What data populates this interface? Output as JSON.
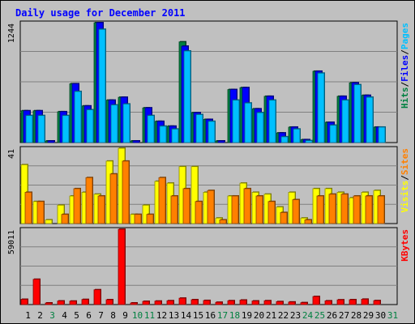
{
  "chart_data": {
    "type": "bar",
    "title": "Daily usage for December 2011",
    "categories": [
      "1",
      "2",
      "3",
      "4",
      "5",
      "6",
      "7",
      "8",
      "9",
      "10",
      "11",
      "12",
      "13",
      "14",
      "15",
      "16",
      "17",
      "18",
      "19",
      "20",
      "21",
      "22",
      "23",
      "24",
      "25",
      "26",
      "27",
      "28",
      "29",
      "30",
      "31"
    ],
    "weekend_days": [
      "3",
      "10",
      "11",
      "17",
      "18",
      "24",
      "25",
      "31"
    ],
    "panels": [
      {
        "id": "hits",
        "ymax_label": "1244",
        "ymax": 1244,
        "legend": [
          "Pages",
          "/",
          "Files",
          "/",
          "Hits"
        ],
        "legend_colors": [
          "#00c0ff",
          "#000000",
          "#0000ff",
          "#000000",
          "#008040"
        ],
        "series": [
          {
            "name": "Hits",
            "color": "#008040",
            "values": [
              330,
              330,
              10,
              320,
              610,
              380,
              1244,
              440,
              470,
              10,
              360,
              220,
              170,
              1045,
              310,
              240,
              10,
              550,
              570,
              350,
              480,
              100,
              160,
              30,
              740,
              210,
              480,
              620,
              490,
              160,
              0
            ]
          },
          {
            "name": "Files",
            "color": "#0000ff",
            "values": [
              330,
              330,
              10,
              320,
              610,
              380,
              1244,
              440,
              470,
              10,
              360,
              220,
              170,
              1000,
              310,
              240,
              10,
              550,
              570,
              350,
              480,
              100,
              160,
              30,
              740,
              210,
              480,
              620,
              490,
              160,
              0
            ]
          },
          {
            "name": "Pages",
            "color": "#00c0ff",
            "values": [
              280,
              280,
              0,
              280,
              530,
              340,
              1175,
              390,
              400,
              0,
              280,
              170,
              140,
              950,
              290,
              220,
              0,
              440,
              410,
              310,
              440,
              60,
              140,
              20,
              720,
              180,
              440,
              600,
              470,
              160,
              0
            ]
          }
        ]
      },
      {
        "id": "visits",
        "ymax_label": "41",
        "ymax": 41,
        "legend": [
          "Sites",
          "/",
          "Visits"
        ],
        "legend_colors": [
          "#ff8000",
          "#000000",
          "#ffff00"
        ],
        "series": [
          {
            "name": "Visits",
            "color": "#ffff00",
            "values": [
              32,
              12,
              2,
              10,
              15,
              17,
              16,
              34,
              41,
              5,
              10,
              23,
              22,
              31,
              31,
              17,
              3,
              15,
              22,
              17,
              16,
              9,
              17,
              3,
              19,
              19,
              17,
              14,
              17,
              18,
              0
            ]
          },
          {
            "name": "Sites",
            "color": "#ff8000",
            "values": [
              17,
              12,
              0,
              5,
              19,
              25,
              15,
              27,
              34,
              5,
              5,
              25,
              15,
              19,
              12,
              18,
              2,
              15,
              19,
              15,
              12,
              6,
              13,
              2,
              15,
              16,
              16,
              15,
              15,
              15,
              0
            ]
          }
        ]
      },
      {
        "id": "kbytes",
        "ymax_label": "59011",
        "ymax": 59011,
        "legend": [
          "KBytes"
        ],
        "legend_colors": [
          "#ff0000"
        ],
        "series": [
          {
            "name": "KBytes",
            "color": "#ff0000",
            "values": [
              4100,
              19800,
              500,
              2800,
              2700,
              4000,
              11600,
              3800,
              59011,
              1200,
              2500,
              2700,
              3000,
              5000,
              3800,
              3200,
              1800,
              3000,
              3500,
              2800,
              3000,
              2300,
              2000,
              1500,
              6300,
              2900,
              3700,
              3800,
              4200,
              3100,
              0
            ]
          }
        ]
      }
    ]
  }
}
